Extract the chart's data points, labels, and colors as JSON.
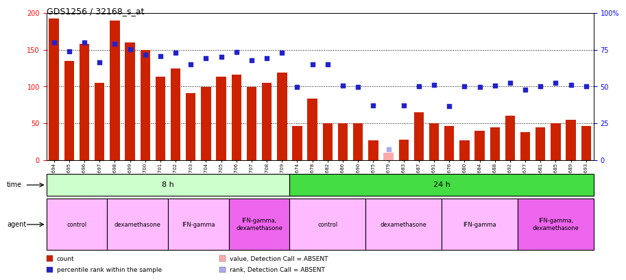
{
  "title": "GDS1256 / 32168_s_at",
  "samples": [
    "GSM31694",
    "GSM31695",
    "GSM31696",
    "GSM31697",
    "GSM31698",
    "GSM31699",
    "GSM31700",
    "GSM31701",
    "GSM31702",
    "GSM31703",
    "GSM31704",
    "GSM31705",
    "GSM31706",
    "GSM31707",
    "GSM31708",
    "GSM31709",
    "GSM31674",
    "GSM31678",
    "GSM31682",
    "GSM31686",
    "GSM31690",
    "GSM31675",
    "GSM31679",
    "GSM31683",
    "GSM31687",
    "GSM31691",
    "GSM31676",
    "GSM31680",
    "GSM31684",
    "GSM31688",
    "GSM31692",
    "GSM31677",
    "GSM31681",
    "GSM31685",
    "GSM31689",
    "GSM31693"
  ],
  "bar_values": [
    193,
    135,
    158,
    105,
    190,
    160,
    150,
    113,
    125,
    91,
    99,
    113,
    116,
    99,
    105,
    119,
    46,
    84,
    50,
    50,
    50,
    27,
    10,
    28,
    65,
    50,
    46,
    27,
    40,
    44,
    60,
    38,
    44,
    50,
    55,
    46
  ],
  "dot_values": [
    160,
    148,
    160,
    133,
    158,
    151,
    143,
    141,
    146,
    130,
    139,
    140,
    147,
    136,
    139,
    146,
    99,
    130,
    130,
    101,
    99,
    74,
    15,
    74,
    100,
    102,
    73,
    100,
    99,
    101,
    105,
    96,
    100,
    105,
    102,
    100
  ],
  "absent_bar_indices": [
    22
  ],
  "absent_dot_indices": [
    22
  ],
  "bar_color": "#cc2200",
  "dot_color": "#2222cc",
  "absent_bar_color": "#ffaaaa",
  "absent_dot_color": "#aaaaee",
  "left_ylim": [
    0,
    200
  ],
  "right_ylim": [
    0,
    100
  ],
  "left_yticks": [
    0,
    50,
    100,
    150,
    200
  ],
  "right_yticks": [
    0,
    25,
    50,
    75,
    100
  ],
  "right_yticklabels": [
    "0",
    "25",
    "50",
    "75",
    "100%"
  ],
  "grid_yticks": [
    50,
    100,
    150
  ],
  "time_groups": [
    {
      "label": "8 h",
      "start": 0,
      "end": 16,
      "color": "#ccffcc"
    },
    {
      "label": "24 h",
      "start": 16,
      "end": 36,
      "color": "#44dd44"
    }
  ],
  "agent_groups": [
    {
      "label": "control",
      "start": 0,
      "end": 4,
      "color": "#ffbbff"
    },
    {
      "label": "dexamethasone",
      "start": 4,
      "end": 8,
      "color": "#ffbbff"
    },
    {
      "label": "IFN-gamma",
      "start": 8,
      "end": 12,
      "color": "#ffbbff"
    },
    {
      "label": "IFN-gamma,\ndexamethasone",
      "start": 12,
      "end": 16,
      "color": "#ee66ee"
    },
    {
      "label": "control",
      "start": 16,
      "end": 21,
      "color": "#ffbbff"
    },
    {
      "label": "dexamethasone",
      "start": 21,
      "end": 26,
      "color": "#ffbbff"
    },
    {
      "label": "IFN-gamma",
      "start": 26,
      "end": 31,
      "color": "#ffbbff"
    },
    {
      "label": "IFN-gamma,\ndexamethasone",
      "start": 31,
      "end": 36,
      "color": "#ee66ee"
    }
  ],
  "bg_color": "#ffffff",
  "plot_bg": "#ffffff",
  "bar_width": 0.65,
  "legend_items": [
    {
      "label": "count",
      "color": "#cc2200"
    },
    {
      "label": "percentile rank within the sample",
      "color": "#2222cc"
    },
    {
      "label": "value, Detection Call = ABSENT",
      "color": "#ffaaaa"
    },
    {
      "label": "rank, Detection Call = ABSENT",
      "color": "#aaaaee"
    }
  ]
}
